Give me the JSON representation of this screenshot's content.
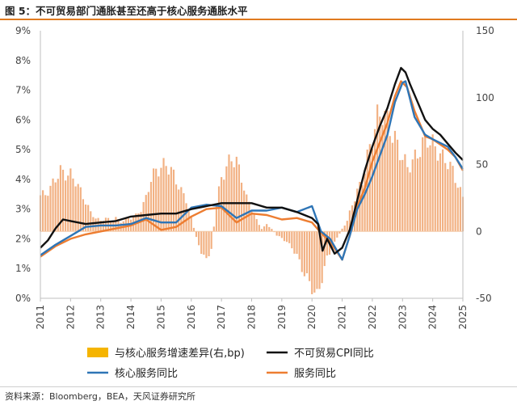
{
  "title": "图 5：不可贸易部门通胀甚至还高于核心服务通胀水平",
  "source": "资料来源：Bloomberg，BEA，天风证券研究所",
  "colors": {
    "bars": "#f2b183",
    "legend_bar_swatch": "#f5b400",
    "non_tradable": "#111111",
    "core_services": "#2e75b6",
    "services": "#ed7d31",
    "accent": "#e07a1f"
  },
  "chart_data": {
    "type": "bar+line",
    "x_ticks": [
      "2011",
      "2012",
      "2013",
      "2014",
      "2015",
      "2016",
      "2017",
      "2018",
      "2019",
      "2020",
      "2021",
      "2022",
      "2023",
      "2024",
      "2025"
    ],
    "y_left": {
      "lim": [
        0,
        9
      ],
      "ticks": [
        "0%",
        "1%",
        "2%",
        "3%",
        "4%",
        "5%",
        "6%",
        "7%",
        "8%",
        "9%"
      ]
    },
    "y_right": {
      "lim": [
        -50,
        150
      ],
      "ticks": [
        "-50",
        "0",
        "50",
        "100",
        "150"
      ]
    },
    "grid": false,
    "legend_position": "bottom",
    "series": [
      {
        "name": "与核心服务增速差异(右,bp)",
        "kind": "bar",
        "axis": "right",
        "points": [
          [
            2011.0,
            27
          ],
          [
            2011.17,
            28
          ],
          [
            2011.33,
            32
          ],
          [
            2011.5,
            40
          ],
          [
            2011.67,
            45
          ],
          [
            2011.83,
            43
          ],
          [
            2012.0,
            42
          ],
          [
            2012.17,
            38
          ],
          [
            2012.33,
            30
          ],
          [
            2012.5,
            22
          ],
          [
            2012.67,
            14
          ],
          [
            2012.83,
            10
          ],
          [
            2013.0,
            8
          ],
          [
            2013.17,
            10
          ],
          [
            2013.33,
            8
          ],
          [
            2013.5,
            10
          ],
          [
            2013.67,
            7
          ],
          [
            2013.83,
            9
          ],
          [
            2014.0,
            10
          ],
          [
            2014.17,
            12
          ],
          [
            2014.33,
            16
          ],
          [
            2014.5,
            25
          ],
          [
            2014.67,
            40
          ],
          [
            2014.83,
            45
          ],
          [
            2015.0,
            48
          ],
          [
            2015.17,
            50
          ],
          [
            2015.33,
            46
          ],
          [
            2015.5,
            38
          ],
          [
            2015.67,
            30
          ],
          [
            2015.83,
            24
          ],
          [
            2016.0,
            10
          ],
          [
            2016.17,
            -5
          ],
          [
            2016.33,
            -15
          ],
          [
            2016.5,
            -22
          ],
          [
            2016.67,
            -12
          ],
          [
            2016.83,
            20
          ],
          [
            2017.0,
            40
          ],
          [
            2017.17,
            48
          ],
          [
            2017.33,
            55
          ],
          [
            2017.5,
            52
          ],
          [
            2017.67,
            40
          ],
          [
            2017.83,
            25
          ],
          [
            2018.0,
            18
          ],
          [
            2018.17,
            8
          ],
          [
            2018.33,
            2
          ],
          [
            2018.5,
            5
          ],
          [
            2018.67,
            2
          ],
          [
            2018.83,
            -3
          ],
          [
            2019.0,
            -5
          ],
          [
            2019.17,
            -8
          ],
          [
            2019.33,
            -12
          ],
          [
            2019.5,
            -18
          ],
          [
            2019.67,
            -28
          ],
          [
            2019.83,
            -35
          ],
          [
            2020.0,
            -42
          ],
          [
            2020.17,
            -49
          ],
          [
            2020.33,
            -35
          ],
          [
            2020.5,
            -20
          ],
          [
            2020.67,
            -12
          ],
          [
            2020.83,
            -5
          ],
          [
            2021.0,
            2
          ],
          [
            2021.17,
            8
          ],
          [
            2021.33,
            20
          ],
          [
            2021.5,
            30
          ],
          [
            2021.67,
            38
          ],
          [
            2021.83,
            55
          ],
          [
            2022.0,
            70
          ],
          [
            2022.17,
            85
          ],
          [
            2022.33,
            90
          ],
          [
            2022.5,
            82
          ],
          [
            2022.67,
            72
          ],
          [
            2022.83,
            65
          ],
          [
            2023.0,
            55
          ],
          [
            2023.17,
            48
          ],
          [
            2023.33,
            52
          ],
          [
            2023.5,
            58
          ],
          [
            2023.67,
            65
          ],
          [
            2023.83,
            70
          ],
          [
            2024.0,
            65
          ],
          [
            2024.17,
            60
          ],
          [
            2024.33,
            55
          ],
          [
            2024.5,
            52
          ],
          [
            2024.67,
            45
          ],
          [
            2024.83,
            35
          ],
          [
            2025.0,
            25
          ]
        ]
      },
      {
        "name": "不可贸易CPI同比",
        "kind": "line",
        "axis": "left",
        "points": [
          [
            2011.0,
            1.7
          ],
          [
            2011.25,
            1.95
          ],
          [
            2011.5,
            2.35
          ],
          [
            2011.75,
            2.65
          ],
          [
            2012.0,
            2.6
          ],
          [
            2012.5,
            2.5
          ],
          [
            2013.0,
            2.55
          ],
          [
            2013.5,
            2.6
          ],
          [
            2014.0,
            2.75
          ],
          [
            2014.5,
            2.8
          ],
          [
            2015.0,
            2.85
          ],
          [
            2015.5,
            2.85
          ],
          [
            2016.0,
            3.0
          ],
          [
            2016.5,
            3.1
          ],
          [
            2017.0,
            3.2
          ],
          [
            2017.5,
            3.2
          ],
          [
            2018.0,
            3.2
          ],
          [
            2018.5,
            3.05
          ],
          [
            2019.0,
            3.05
          ],
          [
            2019.5,
            2.9
          ],
          [
            2020.0,
            2.7
          ],
          [
            2020.2,
            2.5
          ],
          [
            2020.35,
            1.6
          ],
          [
            2020.5,
            2.0
          ],
          [
            2020.75,
            1.5
          ],
          [
            2021.0,
            1.7
          ],
          [
            2021.25,
            2.3
          ],
          [
            2021.5,
            3.3
          ],
          [
            2021.75,
            4.3
          ],
          [
            2022.0,
            5.1
          ],
          [
            2022.25,
            5.8
          ],
          [
            2022.5,
            6.4
          ],
          [
            2022.75,
            7.2
          ],
          [
            2022.95,
            7.75
          ],
          [
            2023.1,
            7.6
          ],
          [
            2023.25,
            7.2
          ],
          [
            2023.5,
            6.6
          ],
          [
            2023.75,
            6.0
          ],
          [
            2024.0,
            5.7
          ],
          [
            2024.25,
            5.5
          ],
          [
            2024.5,
            5.2
          ],
          [
            2024.75,
            4.9
          ],
          [
            2025.0,
            4.65
          ]
        ]
      },
      {
        "name": "核心服务同比",
        "kind": "line",
        "axis": "left",
        "points": [
          [
            2011.0,
            1.45
          ],
          [
            2011.5,
            1.8
          ],
          [
            2012.0,
            2.1
          ],
          [
            2012.5,
            2.4
          ],
          [
            2013.0,
            2.45
          ],
          [
            2013.5,
            2.45
          ],
          [
            2014.0,
            2.5
          ],
          [
            2014.5,
            2.7
          ],
          [
            2015.0,
            2.55
          ],
          [
            2015.5,
            2.55
          ],
          [
            2016.0,
            3.05
          ],
          [
            2016.5,
            3.15
          ],
          [
            2017.0,
            3.1
          ],
          [
            2017.5,
            2.7
          ],
          [
            2018.0,
            2.95
          ],
          [
            2018.5,
            2.95
          ],
          [
            2019.0,
            3.05
          ],
          [
            2019.5,
            2.9
          ],
          [
            2020.0,
            3.1
          ],
          [
            2020.3,
            2.25
          ],
          [
            2020.6,
            2.0
          ],
          [
            2021.0,
            1.3
          ],
          [
            2021.25,
            2.1
          ],
          [
            2021.5,
            3.0
          ],
          [
            2021.75,
            3.5
          ],
          [
            2022.0,
            4.1
          ],
          [
            2022.5,
            5.5
          ],
          [
            2022.75,
            6.6
          ],
          [
            2023.0,
            7.25
          ],
          [
            2023.1,
            7.3
          ],
          [
            2023.4,
            6.1
          ],
          [
            2023.75,
            5.5
          ],
          [
            2024.0,
            5.35
          ],
          [
            2024.5,
            5.1
          ],
          [
            2024.75,
            4.75
          ],
          [
            2025.0,
            4.35
          ]
        ]
      },
      {
        "name": "服务同比",
        "kind": "line",
        "axis": "left",
        "points": [
          [
            2011.0,
            1.4
          ],
          [
            2011.5,
            1.75
          ],
          [
            2012.0,
            2.0
          ],
          [
            2012.5,
            2.15
          ],
          [
            2013.0,
            2.25
          ],
          [
            2013.5,
            2.35
          ],
          [
            2014.0,
            2.45
          ],
          [
            2014.5,
            2.65
          ],
          [
            2015.0,
            2.3
          ],
          [
            2015.5,
            2.4
          ],
          [
            2016.0,
            2.75
          ],
          [
            2016.5,
            3.0
          ],
          [
            2017.0,
            3.05
          ],
          [
            2017.5,
            2.55
          ],
          [
            2018.0,
            2.85
          ],
          [
            2018.5,
            2.8
          ],
          [
            2019.0,
            2.65
          ],
          [
            2019.5,
            2.7
          ],
          [
            2020.0,
            2.55
          ],
          [
            2020.3,
            2.2
          ],
          [
            2020.6,
            1.9
          ],
          [
            2021.0,
            1.3
          ],
          [
            2021.25,
            2.1
          ],
          [
            2021.5,
            3.1
          ],
          [
            2021.75,
            3.7
          ],
          [
            2022.0,
            4.6
          ],
          [
            2022.5,
            5.9
          ],
          [
            2022.75,
            6.8
          ],
          [
            2022.95,
            7.3
          ],
          [
            2023.15,
            7.1
          ],
          [
            2023.4,
            6.3
          ],
          [
            2023.75,
            5.45
          ],
          [
            2024.0,
            5.35
          ],
          [
            2024.5,
            5.0
          ],
          [
            2024.75,
            4.75
          ],
          [
            2025.0,
            4.3
          ]
        ]
      }
    ],
    "legend": {
      "bars": "与核心服务增速差异(右,bp)",
      "non_tradable": "不可贸易CPI同比",
      "core_services": "核心服务同比",
      "services": "服务同比"
    }
  }
}
